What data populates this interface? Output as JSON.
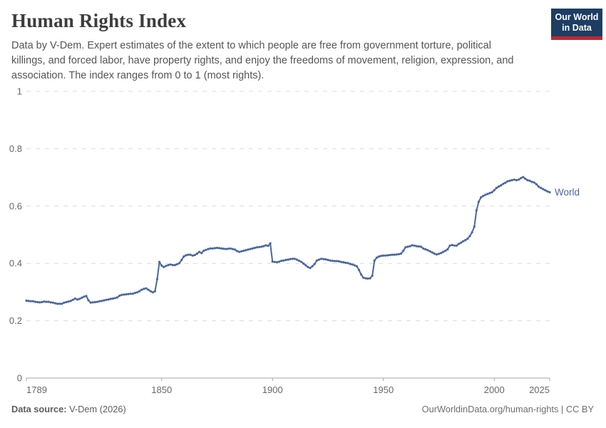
{
  "header": {
    "title": "Human Rights Index",
    "subtitle_lines": [
      "Data by V-Dem. Expert estimates of the extent to which people are free from government torture, political",
      "killings, and forced labor, have property rights, and enjoy the freedoms of movement, religion, expression, and",
      "association. The index ranges from 0 to 1 (most rights)."
    ],
    "logo": {
      "line1": "Our World",
      "line2": "in Data"
    }
  },
  "footer": {
    "source_label": "Data source:",
    "source_value": " V-Dem (2026)",
    "link": "OurWorldinData.org/human-rights | CC BY"
  },
  "colors": {
    "line": "#4a679f",
    "grid": "#dcdcdc",
    "axis": "#a5a5a5",
    "tick_label": "#676767",
    "title": "#3c3c3c",
    "subtitle": "#555555",
    "footer": "#5d5d5d",
    "logo_bg": "#1d3d63",
    "logo_bar": "#c1272d"
  },
  "chart_data": {
    "type": "line",
    "title": "Human Rights Index",
    "xlabel": "",
    "ylabel": "",
    "xlim": [
      1789,
      2025
    ],
    "ylim": [
      0,
      1
    ],
    "xticks": [
      1789,
      1850,
      1900,
      1950,
      2000,
      2025
    ],
    "yticks": [
      0,
      0.2,
      0.4,
      0.6,
      0.8,
      1
    ],
    "grid": "horizontal-dashed",
    "legend_position": "end-of-line-label",
    "start_year": 1789,
    "end_year": 2025,
    "series": [
      {
        "name": "World",
        "values": [
          0.27,
          0.269,
          0.268,
          0.268,
          0.266,
          0.265,
          0.264,
          0.265,
          0.267,
          0.266,
          0.266,
          0.264,
          0.263,
          0.261,
          0.259,
          0.259,
          0.259,
          0.263,
          0.265,
          0.267,
          0.269,
          0.273,
          0.277,
          0.274,
          0.276,
          0.28,
          0.284,
          0.286,
          0.271,
          0.263,
          0.264,
          0.265,
          0.266,
          0.268,
          0.269,
          0.271,
          0.273,
          0.274,
          0.276,
          0.277,
          0.279,
          0.281,
          0.287,
          0.29,
          0.291,
          0.292,
          0.293,
          0.294,
          0.294,
          0.297,
          0.299,
          0.303,
          0.308,
          0.311,
          0.313,
          0.308,
          0.303,
          0.299,
          0.303,
          0.345,
          0.405,
          0.392,
          0.387,
          0.391,
          0.394,
          0.396,
          0.394,
          0.394,
          0.397,
          0.401,
          0.412,
          0.424,
          0.428,
          0.43,
          0.43,
          0.427,
          0.429,
          0.434,
          0.44,
          0.436,
          0.444,
          0.447,
          0.45,
          0.452,
          0.452,
          0.453,
          0.454,
          0.453,
          0.452,
          0.451,
          0.45,
          0.451,
          0.452,
          0.45,
          0.448,
          0.443,
          0.44,
          0.442,
          0.444,
          0.446,
          0.448,
          0.45,
          0.452,
          0.454,
          0.456,
          0.457,
          0.458,
          0.46,
          0.463,
          0.461,
          0.47,
          0.406,
          0.405,
          0.404,
          0.406,
          0.409,
          0.41,
          0.412,
          0.413,
          0.415,
          0.416,
          0.416,
          0.413,
          0.409,
          0.405,
          0.399,
          0.393,
          0.387,
          0.384,
          0.39,
          0.398,
          0.41,
          0.413,
          0.416,
          0.415,
          0.414,
          0.412,
          0.41,
          0.409,
          0.408,
          0.408,
          0.407,
          0.405,
          0.404,
          0.402,
          0.401,
          0.398,
          0.396,
          0.393,
          0.39,
          0.377,
          0.361,
          0.35,
          0.348,
          0.347,
          0.348,
          0.357,
          0.41,
          0.42,
          0.424,
          0.426,
          0.427,
          0.427,
          0.428,
          0.429,
          0.43,
          0.43,
          0.431,
          0.432,
          0.434,
          0.444,
          0.456,
          0.458,
          0.46,
          0.463,
          0.462,
          0.46,
          0.459,
          0.458,
          0.452,
          0.449,
          0.446,
          0.442,
          0.438,
          0.434,
          0.431,
          0.433,
          0.436,
          0.44,
          0.444,
          0.449,
          0.462,
          0.464,
          0.462,
          0.462,
          0.468,
          0.472,
          0.477,
          0.481,
          0.486,
          0.495,
          0.508,
          0.528,
          0.585,
          0.615,
          0.63,
          0.635,
          0.639,
          0.642,
          0.645,
          0.648,
          0.655,
          0.663,
          0.668,
          0.672,
          0.677,
          0.681,
          0.686,
          0.688,
          0.69,
          0.692,
          0.69,
          0.692,
          0.697,
          0.701,
          0.695,
          0.69,
          0.688,
          0.684,
          0.682,
          0.676,
          0.668,
          0.663,
          0.659,
          0.655,
          0.651,
          0.648
        ]
      }
    ]
  }
}
